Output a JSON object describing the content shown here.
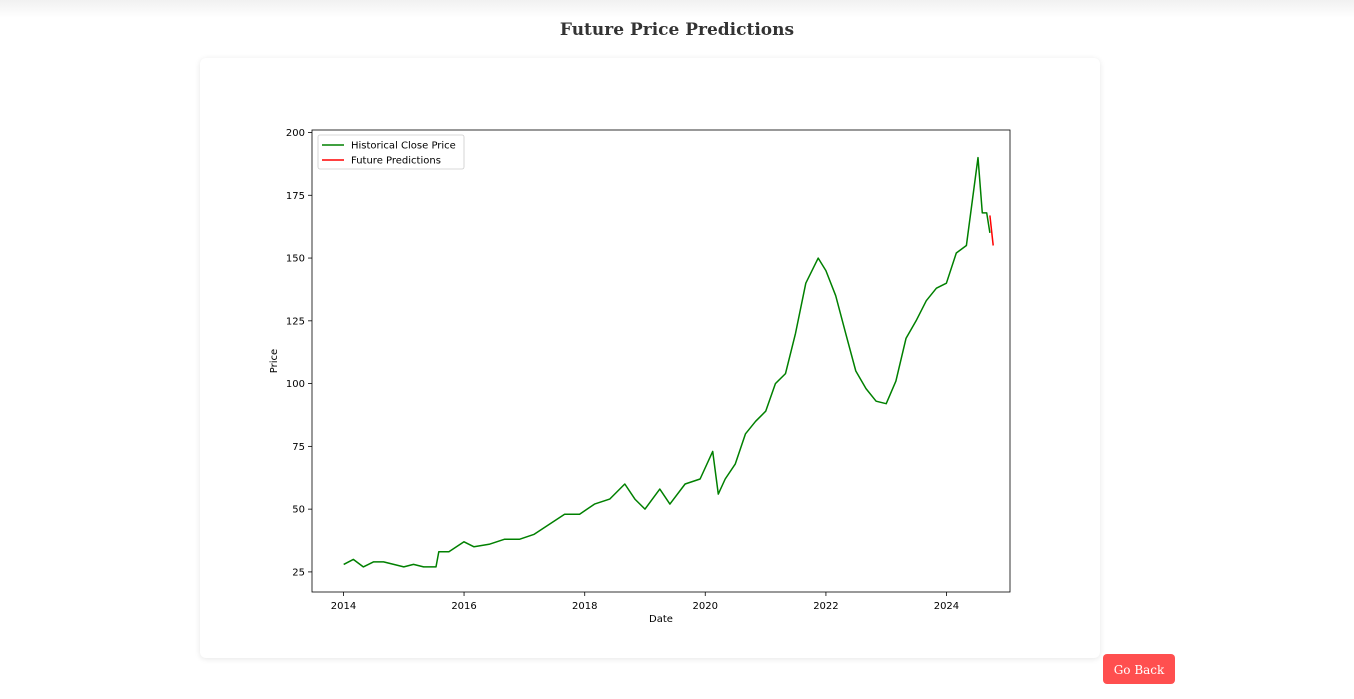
{
  "page": {
    "title": "Future Price Predictions"
  },
  "actions": {
    "go_back_label": "Go Back"
  },
  "colors": {
    "button": "#ff4f4f",
    "historical": "#008000",
    "prediction": "#ff0000"
  },
  "chart_data": {
    "type": "line",
    "title": "",
    "xlabel": "Date",
    "ylabel": "Price",
    "xlim": [
      "2013-06-24",
      "2025-01-20"
    ],
    "ylim": [
      17,
      201
    ],
    "x_ticks": [
      "2014",
      "2016",
      "2018",
      "2020",
      "2022",
      "2024"
    ],
    "y_ticks": [
      "25",
      "50",
      "75",
      "100",
      "125",
      "150",
      "175",
      "200"
    ],
    "grid": false,
    "legend_position": "top-left",
    "series": [
      {
        "name": "Historical Close Price",
        "color": "#008000",
        "x": [
          "2014-01-02",
          "2014-03-01",
          "2014-05-01",
          "2014-07-01",
          "2014-09-01",
          "2014-11-01",
          "2015-01-01",
          "2015-03-01",
          "2015-05-01",
          "2015-07-15",
          "2015-08-01",
          "2015-10-01",
          "2016-01-01",
          "2016-03-01",
          "2016-06-01",
          "2016-09-01",
          "2016-12-01",
          "2017-03-01",
          "2017-06-01",
          "2017-09-01",
          "2017-12-01",
          "2018-03-01",
          "2018-06-01",
          "2018-09-01",
          "2018-11-01",
          "2019-01-01",
          "2019-04-01",
          "2019-06-01",
          "2019-09-01",
          "2019-12-01",
          "2020-02-15",
          "2020-03-20",
          "2020-05-01",
          "2020-07-01",
          "2020-09-01",
          "2020-11-01",
          "2021-01-01",
          "2021-03-01",
          "2021-05-01",
          "2021-07-01",
          "2021-09-01",
          "2021-11-15",
          "2022-01-01",
          "2022-03-01",
          "2022-05-01",
          "2022-07-01",
          "2022-09-01",
          "2022-11-01",
          "2023-01-01",
          "2023-03-01",
          "2023-05-01",
          "2023-07-01",
          "2023-09-01",
          "2023-11-01",
          "2024-01-01",
          "2024-03-01",
          "2024-05-01",
          "2024-07-10",
          "2024-08-05",
          "2024-09-01",
          "2024-09-20"
        ],
        "values": [
          28,
          30,
          27,
          29,
          29,
          28,
          27,
          28,
          27,
          27,
          33,
          33,
          37,
          35,
          36,
          38,
          38,
          40,
          44,
          48,
          48,
          52,
          54,
          60,
          54,
          50,
          58,
          52,
          60,
          62,
          73,
          56,
          62,
          68,
          80,
          85,
          89,
          100,
          104,
          120,
          140,
          150,
          145,
          135,
          120,
          105,
          98,
          93,
          92,
          101,
          118,
          125,
          133,
          138,
          140,
          152,
          155,
          190,
          168,
          168,
          160
        ]
      },
      {
        "name": "Future Predictions",
        "color": "#ff0000",
        "x": [
          "2024-09-20",
          "2024-10-10"
        ],
        "values": [
          167,
          155
        ]
      }
    ]
  }
}
